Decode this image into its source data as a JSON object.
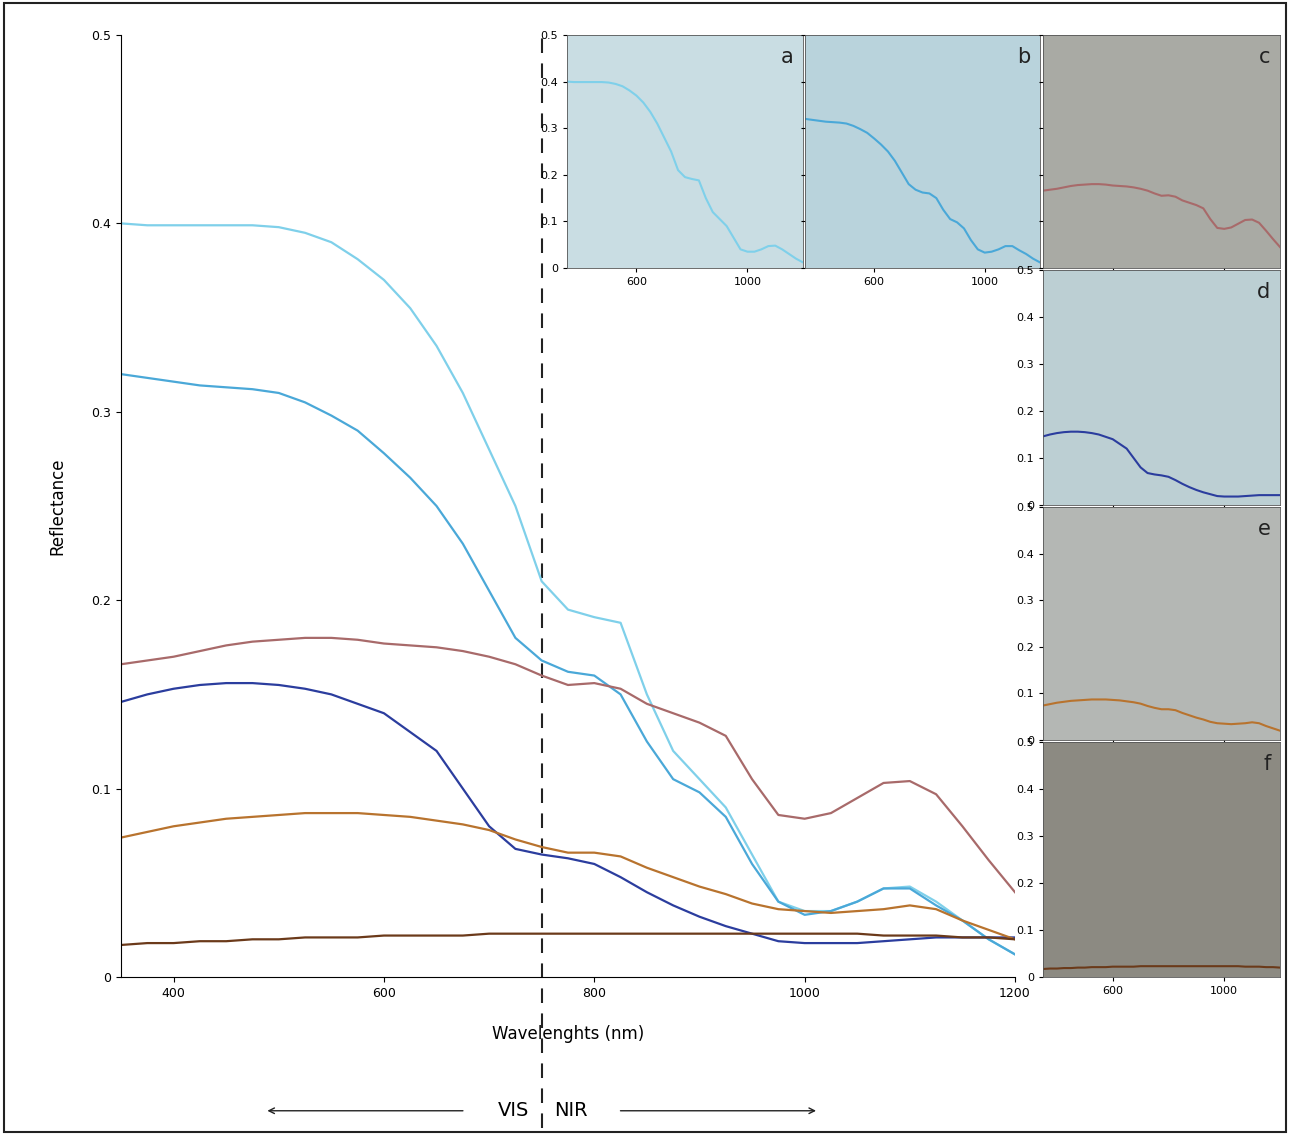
{
  "chart_data": {
    "type": "line",
    "x_label": "Wavelenghts (nm)",
    "y_label": "Reflectance",
    "xlim": [
      350,
      1200
    ],
    "ylim": [
      0,
      0.5
    ],
    "xticks": [
      400,
      600,
      800,
      1000,
      1200
    ],
    "yticks": [
      0,
      0.1,
      0.2,
      0.3,
      0.4,
      0.5
    ],
    "divider_x": 750,
    "annotations": [
      "VIS",
      "NIR"
    ],
    "insets": {
      "xlim": [
        350,
        1200
      ],
      "ylim": [
        0,
        0.5
      ],
      "xticks": [
        600,
        1000
      ],
      "yticks": [
        0,
        0.1,
        0.2,
        0.3,
        0.4,
        0.5
      ]
    },
    "x": [
      350,
      375,
      400,
      425,
      450,
      475,
      500,
      525,
      550,
      575,
      600,
      625,
      650,
      675,
      700,
      725,
      750,
      775,
      800,
      825,
      850,
      875,
      900,
      925,
      950,
      975,
      1000,
      1025,
      1050,
      1075,
      1100,
      1125,
      1150,
      1175,
      1200
    ],
    "series": [
      {
        "panel": "a",
        "color": "#7fd0ea",
        "tick_labels": true,
        "values": [
          0.4,
          0.399,
          0.399,
          0.399,
          0.399,
          0.399,
          0.398,
          0.395,
          0.39,
          0.381,
          0.37,
          0.355,
          0.335,
          0.31,
          0.28,
          0.25,
          0.21,
          0.195,
          0.191,
          0.188,
          0.15,
          0.12,
          0.105,
          0.09,
          0.065,
          0.04,
          0.035,
          0.035,
          0.04,
          0.047,
          0.048,
          0.04,
          0.03,
          0.02,
          0.012
        ]
      },
      {
        "panel": "b",
        "color": "#4aa8d8",
        "tick_labels": "x",
        "values": [
          0.32,
          0.318,
          0.316,
          0.314,
          0.313,
          0.312,
          0.31,
          0.305,
          0.298,
          0.29,
          0.278,
          0.265,
          0.25,
          0.23,
          0.205,
          0.18,
          0.168,
          0.162,
          0.16,
          0.15,
          0.125,
          0.105,
          0.098,
          0.085,
          0.06,
          0.04,
          0.033,
          0.035,
          0.04,
          0.047,
          0.047,
          0.038,
          0.03,
          0.02,
          0.012
        ]
      },
      {
        "panel": "c",
        "color": "#a86a6a",
        "tick_labels": false,
        "values": [
          0.166,
          0.168,
          0.17,
          0.173,
          0.176,
          0.178,
          0.179,
          0.18,
          0.18,
          0.179,
          0.177,
          0.176,
          0.175,
          0.173,
          0.17,
          0.166,
          0.16,
          0.155,
          0.156,
          0.153,
          0.145,
          0.14,
          0.135,
          0.128,
          0.105,
          0.086,
          0.084,
          0.087,
          0.095,
          0.103,
          0.104,
          0.097,
          0.08,
          0.062,
          0.045
        ]
      },
      {
        "panel": "d",
        "color": "#2b3d9e",
        "tick_labels": "y",
        "values": [
          0.146,
          0.15,
          0.153,
          0.155,
          0.156,
          0.156,
          0.155,
          0.153,
          0.15,
          0.145,
          0.14,
          0.13,
          0.12,
          0.1,
          0.08,
          0.068,
          0.065,
          0.063,
          0.06,
          0.053,
          0.045,
          0.038,
          0.032,
          0.027,
          0.023,
          0.019,
          0.018,
          0.018,
          0.018,
          0.019,
          0.02,
          0.021,
          0.021,
          0.021,
          0.021
        ]
      },
      {
        "panel": "e",
        "color": "#b8732e",
        "tick_labels": "y",
        "values": [
          0.074,
          0.077,
          0.08,
          0.082,
          0.084,
          0.085,
          0.086,
          0.087,
          0.087,
          0.087,
          0.086,
          0.085,
          0.083,
          0.081,
          0.078,
          0.073,
          0.069,
          0.066,
          0.066,
          0.064,
          0.058,
          0.053,
          0.048,
          0.044,
          0.039,
          0.036,
          0.035,
          0.034,
          0.035,
          0.036,
          0.038,
          0.036,
          0.03,
          0.025,
          0.02
        ]
      },
      {
        "panel": "f",
        "color": "#6b3a1a",
        "tick_labels": true,
        "values": [
          0.017,
          0.018,
          0.018,
          0.019,
          0.019,
          0.02,
          0.02,
          0.021,
          0.021,
          0.021,
          0.022,
          0.022,
          0.022,
          0.022,
          0.023,
          0.023,
          0.023,
          0.023,
          0.023,
          0.023,
          0.023,
          0.023,
          0.023,
          0.023,
          0.023,
          0.023,
          0.023,
          0.023,
          0.023,
          0.022,
          0.022,
          0.022,
          0.021,
          0.021,
          0.02
        ]
      }
    ]
  }
}
